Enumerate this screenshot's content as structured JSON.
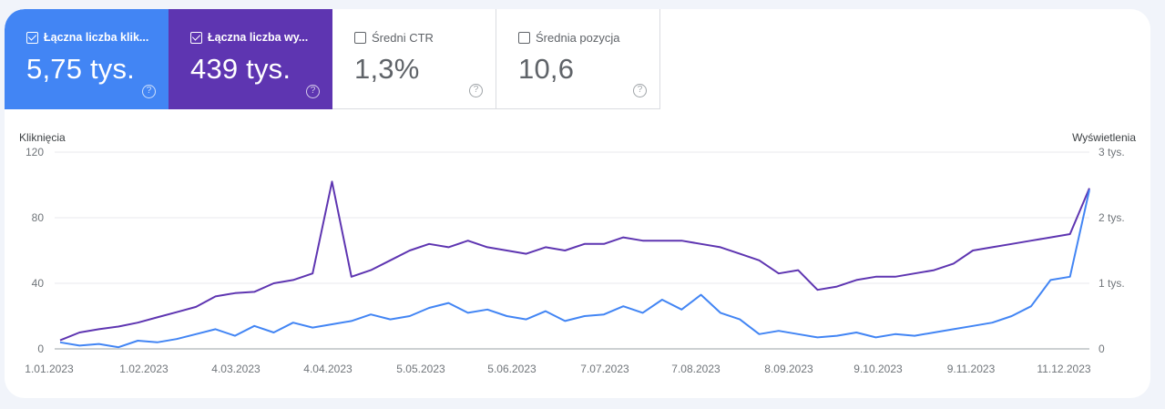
{
  "cards": [
    {
      "label": "Łączna liczba klik...",
      "value": "5,75 tys.",
      "checked": true,
      "color": "#4285f4"
    },
    {
      "label": "Łączna liczba wy...",
      "value": "439 tys.",
      "checked": true,
      "color": "#5e35b1"
    },
    {
      "label": "Średni CTR",
      "value": "1,3%",
      "checked": false
    },
    {
      "label": "Średnia pozycja",
      "value": "10,6",
      "checked": false
    }
  ],
  "help_glyph": "?",
  "chart": {
    "left_axis_title": "Kliknięcia",
    "right_axis_title": "Wyświetlenia",
    "left_ticks": [
      "120",
      "80",
      "40",
      "0"
    ],
    "right_ticks": [
      "3 tys.",
      "2 tys.",
      "1 tys.",
      "0"
    ],
    "x_ticks": [
      "1.01.2023",
      "1.02.2023",
      "4.03.2023",
      "4.04.2023",
      "5.05.2023",
      "5.06.2023",
      "7.07.2023",
      "7.08.2023",
      "8.09.2023",
      "9.10.2023",
      "9.11.2023",
      "11.12.2023"
    ]
  },
  "chart_data": {
    "type": "line",
    "title": "",
    "xlabel": "",
    "ylabel": "Kliknięcia",
    "y2label": "Wyświetlenia",
    "ylim": [
      0,
      120
    ],
    "y2lim": [
      0,
      3000
    ],
    "grid": true,
    "legend": "cards above chart",
    "x": [
      "1.01",
      "8.01",
      "15.01",
      "22.01",
      "29.01",
      "5.02",
      "12.02",
      "19.02",
      "26.02",
      "5.03",
      "12.03",
      "19.03",
      "26.03",
      "2.04",
      "4.04",
      "9.04",
      "16.04",
      "23.04",
      "30.04",
      "7.05",
      "14.05",
      "21.05",
      "28.05",
      "4.06",
      "11.06",
      "18.06",
      "25.06",
      "2.07",
      "9.07",
      "16.07",
      "23.07",
      "30.07",
      "6.08",
      "13.08",
      "20.08",
      "27.08",
      "3.09",
      "10.09",
      "17.09",
      "24.09",
      "1.10",
      "8.10",
      "15.10",
      "22.10",
      "29.10",
      "5.11",
      "12.11",
      "19.11",
      "26.11",
      "3.12",
      "10.12",
      "17.12",
      "24.12",
      "31.12"
    ],
    "series": [
      {
        "name": "Kliknięcia",
        "axis": "left",
        "color": "#4285f4",
        "values": [
          4,
          2,
          3,
          1,
          5,
          4,
          6,
          9,
          12,
          8,
          14,
          10,
          16,
          13,
          15,
          17,
          21,
          18,
          20,
          25,
          28,
          22,
          24,
          20,
          18,
          23,
          17,
          20,
          21,
          26,
          22,
          30,
          24,
          33,
          22,
          18,
          9,
          11,
          9,
          7,
          8,
          10,
          7,
          9,
          8,
          10,
          12,
          14,
          16,
          20,
          26,
          42,
          44,
          97
        ]
      },
      {
        "name": "Wyświetlenia",
        "axis": "right",
        "color": "#5e35b1",
        "values": [
          130,
          250,
          300,
          340,
          400,
          480,
          560,
          640,
          800,
          850,
          870,
          1000,
          1050,
          1150,
          2550,
          1100,
          1200,
          1350,
          1500,
          1600,
          1550,
          1650,
          1550,
          1500,
          1450,
          1550,
          1500,
          1600,
          1600,
          1700,
          1650,
          1650,
          1650,
          1600,
          1550,
          1450,
          1350,
          1150,
          1200,
          900,
          950,
          1050,
          1100,
          1100,
          1150,
          1200,
          1300,
          1500,
          1550,
          1600,
          1650,
          1700,
          1750,
          2450
        ]
      }
    ]
  }
}
